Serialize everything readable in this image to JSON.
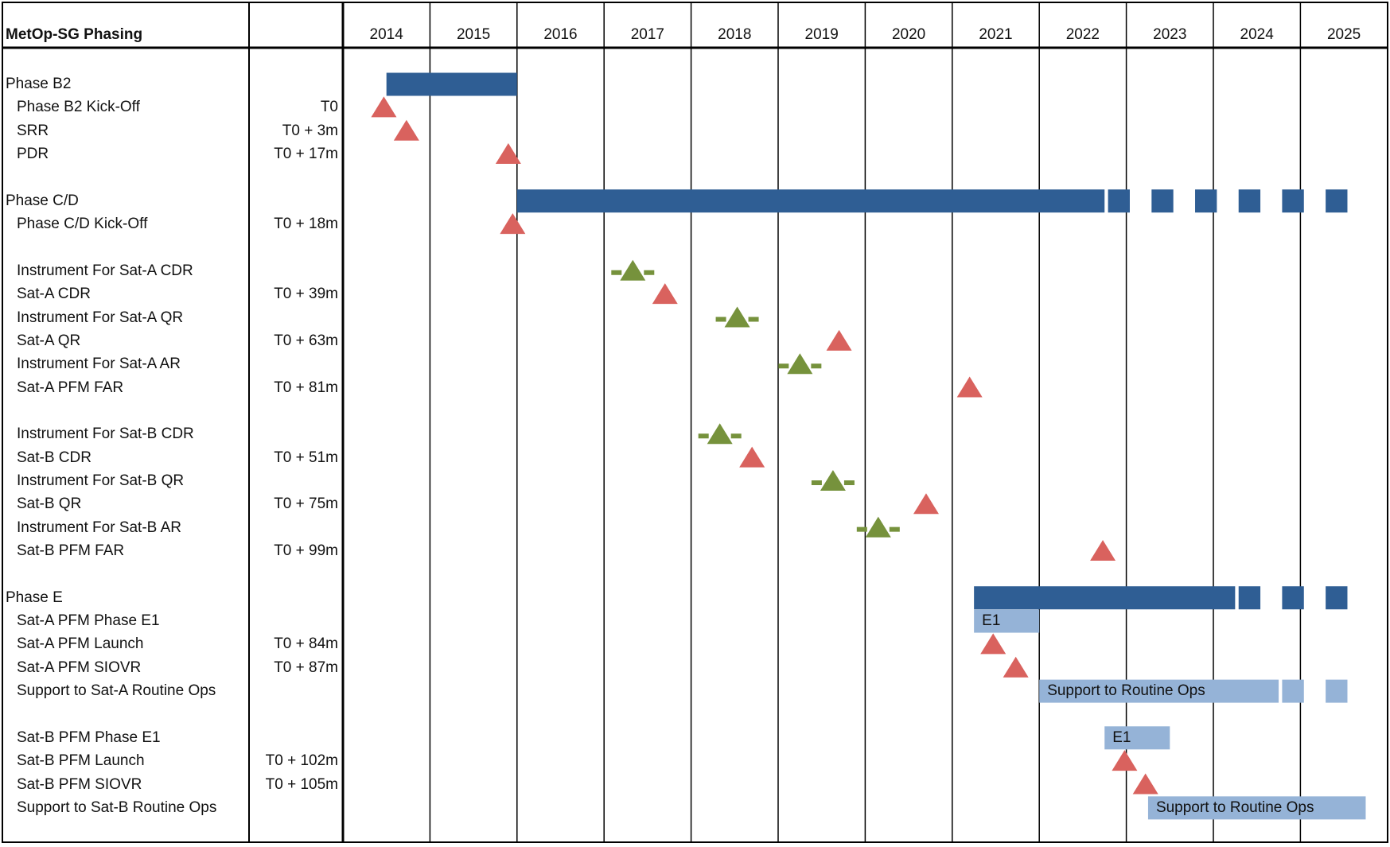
{
  "chart_data": {
    "type": "gantt",
    "title": "MetOp-SG Phasing",
    "years": [
      "2014",
      "2015",
      "2016",
      "2017",
      "2018",
      "2019",
      "2020",
      "2021",
      "2022",
      "2023",
      "2024",
      "2025"
    ],
    "colors": {
      "bar_dark": "#2f5e94",
      "bar_light": "#95b3d7",
      "milestone": "#d9625e",
      "instrument": "#76923c"
    },
    "rows": [
      {
        "label": "Phase B2",
        "level": "group",
        "t": ""
      },
      {
        "label": "Phase B2 Kick-Off",
        "level": "item",
        "t": "T0"
      },
      {
        "label": "SRR",
        "level": "item",
        "t": "T0 + 3m"
      },
      {
        "label": "PDR",
        "level": "item",
        "t": "T0 + 17m"
      },
      {
        "label": "",
        "level": "spacer",
        "t": ""
      },
      {
        "label": "Phase C/D",
        "level": "group",
        "t": ""
      },
      {
        "label": "Phase C/D Kick-Off",
        "level": "item",
        "t": "T0 + 18m"
      },
      {
        "label": "",
        "level": "spacer",
        "t": ""
      },
      {
        "label": "Instrument For Sat-A CDR",
        "level": "item",
        "t": ""
      },
      {
        "label": "Sat-A CDR",
        "level": "item",
        "t": "T0 + 39m"
      },
      {
        "label": "Instrument For Sat-A QR",
        "level": "item",
        "t": ""
      },
      {
        "label": "Sat-A QR",
        "level": "item",
        "t": "T0 + 63m"
      },
      {
        "label": "Instrument For Sat-A AR",
        "level": "item",
        "t": ""
      },
      {
        "label": "Sat-A PFM FAR",
        "level": "item",
        "t": "T0 + 81m"
      },
      {
        "label": "",
        "level": "spacer",
        "t": ""
      },
      {
        "label": "Instrument For Sat-B CDR",
        "level": "item",
        "t": ""
      },
      {
        "label": "Sat-B CDR",
        "level": "item",
        "t": "T0 + 51m"
      },
      {
        "label": "Instrument For Sat-B QR",
        "level": "item",
        "t": ""
      },
      {
        "label": "Sat-B QR",
        "level": "item",
        "t": "T0 + 75m"
      },
      {
        "label": "Instrument For Sat-B AR",
        "level": "item",
        "t": ""
      },
      {
        "label": "Sat-B PFM FAR",
        "level": "item",
        "t": "T0 + 99m"
      },
      {
        "label": "",
        "level": "spacer",
        "t": ""
      },
      {
        "label": "Phase E",
        "level": "group",
        "t": ""
      },
      {
        "label": "Sat-A PFM Phase E1",
        "level": "item",
        "t": ""
      },
      {
        "label": "Sat-A PFM Launch",
        "level": "item",
        "t": "T0 + 84m"
      },
      {
        "label": "Sat-A PFM SIOVR",
        "level": "item",
        "t": "T0 + 87m"
      },
      {
        "label": "Support to Sat-A Routine Ops",
        "level": "item",
        "t": ""
      },
      {
        "label": "",
        "level": "spacer",
        "t": ""
      },
      {
        "label": "Sat-B PFM Phase E1",
        "level": "item",
        "t": ""
      },
      {
        "label": "Sat-B PFM Launch",
        "level": "item",
        "t": "T0 + 102m"
      },
      {
        "label": "Sat-B PFM SIOVR",
        "level": "item",
        "t": "T0 + 105m"
      },
      {
        "label": "Support to Sat-B Routine Ops",
        "level": "item",
        "t": ""
      }
    ],
    "bars": [
      {
        "row": 0,
        "start": 2014.5,
        "end": 2016.0,
        "style": "dark",
        "label": ""
      },
      {
        "row": 5,
        "start": 2016.0,
        "end": 2022.75,
        "style": "dark",
        "dashed_to": 2025.75,
        "label": ""
      },
      {
        "row": 22,
        "start": 2021.25,
        "end": 2024.25,
        "style": "dark",
        "dashed_to": 2025.75,
        "label": ""
      },
      {
        "row": 23,
        "start": 2021.25,
        "end": 2022.0,
        "style": "light",
        "label": "E1"
      },
      {
        "row": 26,
        "start": 2022.0,
        "end": 2024.75,
        "style": "light",
        "dashed_to": 2025.75,
        "label": "Support to Routine Ops"
      },
      {
        "row": 28,
        "start": 2022.75,
        "end": 2023.5,
        "style": "light",
        "label": "E1"
      },
      {
        "row": 31,
        "start": 2023.25,
        "end": 2025.75,
        "style": "light",
        "label": "Support to Routine Ops"
      }
    ],
    "milestones": [
      {
        "row": 1,
        "x": 2014.47,
        "kind": "review"
      },
      {
        "row": 2,
        "x": 2014.73,
        "kind": "review"
      },
      {
        "row": 3,
        "x": 2015.9,
        "kind": "review"
      },
      {
        "row": 6,
        "x": 2015.95,
        "kind": "review"
      },
      {
        "row": 8,
        "x": 2017.33,
        "kind": "instrument"
      },
      {
        "row": 9,
        "x": 2017.7,
        "kind": "review"
      },
      {
        "row": 10,
        "x": 2018.53,
        "kind": "instrument"
      },
      {
        "row": 11,
        "x": 2019.7,
        "kind": "review"
      },
      {
        "row": 12,
        "x": 2019.25,
        "kind": "instrument"
      },
      {
        "row": 13,
        "x": 2021.2,
        "kind": "review"
      },
      {
        "row": 15,
        "x": 2018.33,
        "kind": "instrument"
      },
      {
        "row": 16,
        "x": 2018.7,
        "kind": "review"
      },
      {
        "row": 17,
        "x": 2019.63,
        "kind": "instrument"
      },
      {
        "row": 18,
        "x": 2020.7,
        "kind": "review"
      },
      {
        "row": 19,
        "x": 2020.15,
        "kind": "instrument"
      },
      {
        "row": 20,
        "x": 2022.73,
        "kind": "review"
      },
      {
        "row": 24,
        "x": 2021.47,
        "kind": "review"
      },
      {
        "row": 25,
        "x": 2021.73,
        "kind": "review"
      },
      {
        "row": 29,
        "x": 2022.98,
        "kind": "review"
      },
      {
        "row": 30,
        "x": 2023.22,
        "kind": "review"
      }
    ]
  }
}
